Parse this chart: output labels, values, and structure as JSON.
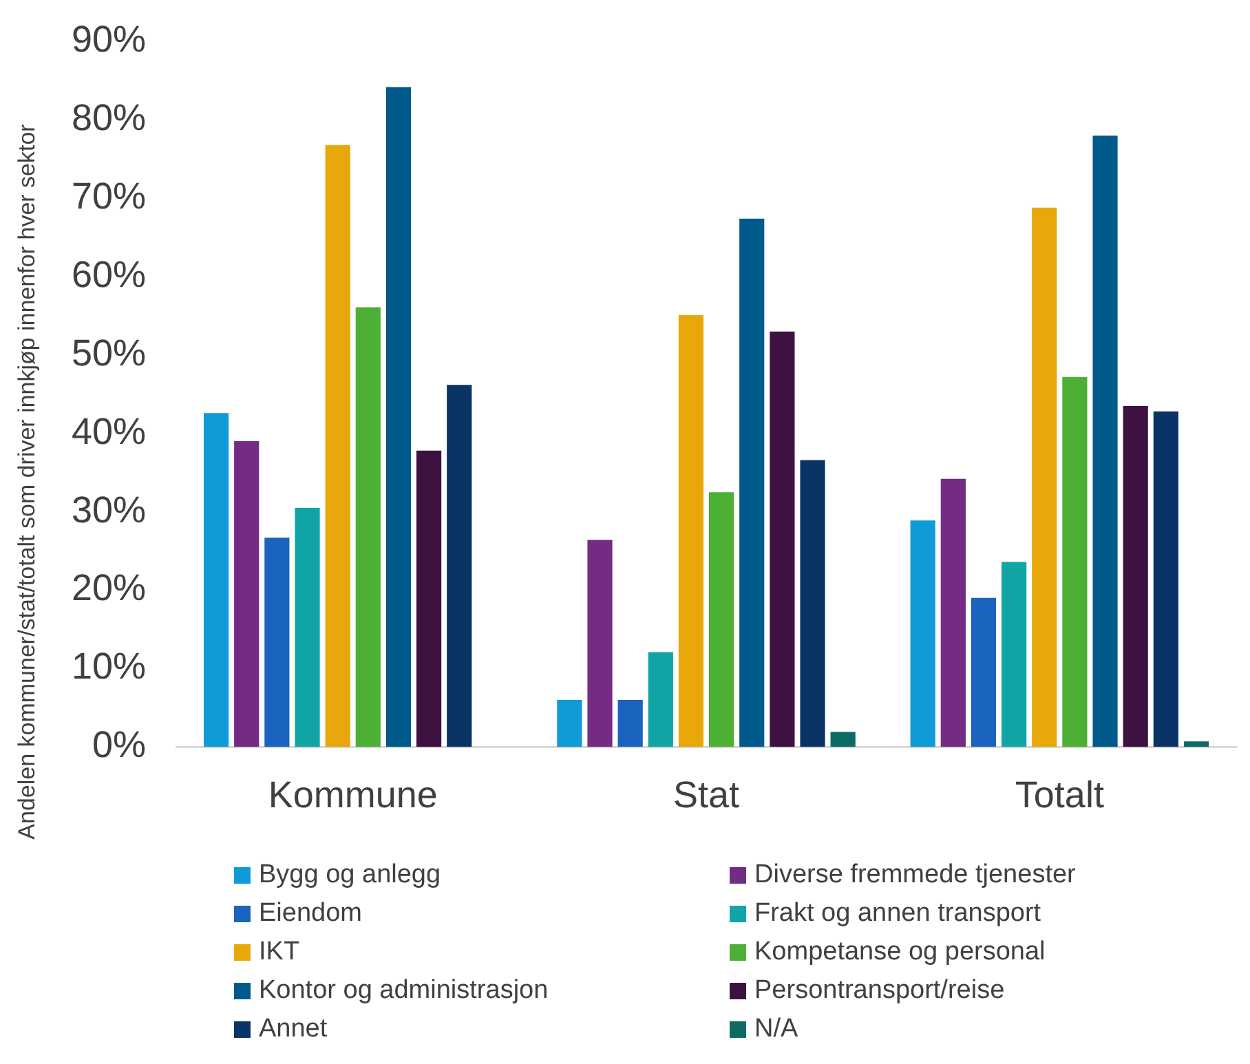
{
  "chart_data": {
    "type": "bar",
    "ylabel": "Andelen kommuner/stat/totalt som driver innkjøp innenfor hver sektor",
    "categories": [
      "Kommune",
      "Stat",
      "Totalt"
    ],
    "series": [
      {
        "name": "Bygg og anlegg",
        "color": "#0f9ad8",
        "values": [
          42.6,
          6.0,
          28.9
        ]
      },
      {
        "name": "Diverse fremmede tjenester",
        "color": "#732b84",
        "values": [
          39.0,
          26.4,
          34.2
        ]
      },
      {
        "name": "Eiendom",
        "color": "#1a64c0",
        "values": [
          26.7,
          6.0,
          19.0
        ]
      },
      {
        "name": "Frakt og annen transport",
        "color": "#12a5a5",
        "values": [
          30.5,
          12.1,
          23.6
        ]
      },
      {
        "name": "IKT",
        "color": "#e8a80a",
        "values": [
          76.8,
          55.1,
          68.8
        ]
      },
      {
        "name": "Kompetanse og personal",
        "color": "#4bb033",
        "values": [
          56.1,
          32.5,
          47.2
        ]
      },
      {
        "name": "Kontor og administrasjon",
        "color": "#005b8c",
        "values": [
          84.2,
          67.4,
          78.0
        ]
      },
      {
        "name": "Persontransport/reise",
        "color": "#3d1240",
        "values": [
          37.8,
          53.0,
          43.5
        ]
      },
      {
        "name": "Annet",
        "color": "#0a3466",
        "values": [
          46.2,
          36.6,
          42.8
        ]
      },
      {
        "name": "N/A",
        "color": "#0e6b63",
        "values": [
          null,
          1.9,
          0.7
        ]
      }
    ],
    "ylim": [
      0,
      90
    ],
    "yticks": [
      {
        "value": 0,
        "label": "0%"
      },
      {
        "value": 10,
        "label": "10%"
      },
      {
        "value": 20,
        "label": "20%"
      },
      {
        "value": 30,
        "label": "30%"
      },
      {
        "value": 40,
        "label": "40%"
      },
      {
        "value": 50,
        "label": "50%"
      },
      {
        "value": 60,
        "label": "60%"
      },
      {
        "value": 70,
        "label": "70%"
      },
      {
        "value": 80,
        "label": "80%"
      },
      {
        "value": 90,
        "label": "90%"
      }
    ],
    "grid": false,
    "legend": "bottom"
  }
}
